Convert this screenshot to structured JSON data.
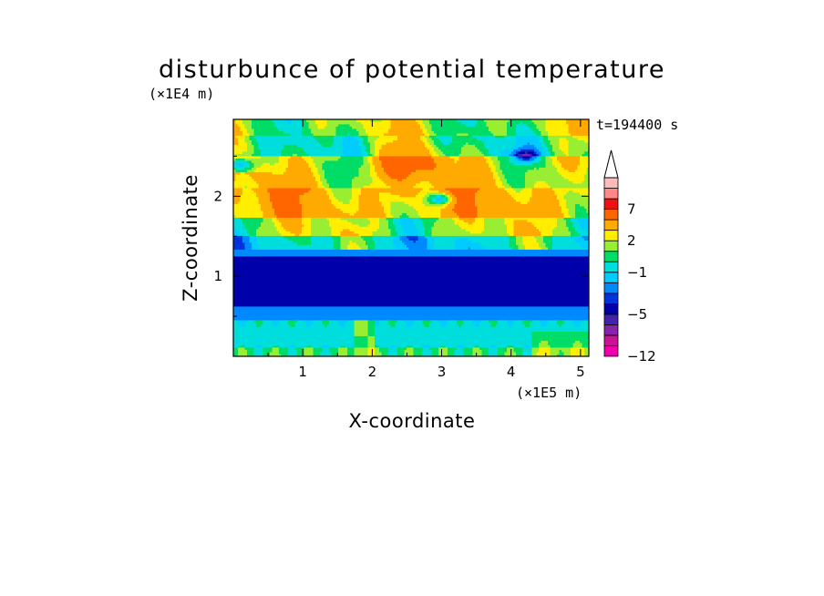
{
  "chart_data": {
    "type": "heatmap",
    "title": "disturbunce of potential temperature",
    "time_label": "t=194400 s",
    "xlabel": "X-coordinate",
    "ylabel": "Z-coordinate",
    "x_unit": "(×1E5 m)",
    "y_unit": "(×1E4 m)",
    "xlim": [
      0,
      5.12
    ],
    "ylim": [
      0,
      2.96
    ],
    "x_ticks": [
      "1",
      "2",
      "3",
      "4",
      "5"
    ],
    "x_tick_values": [
      1,
      2,
      3,
      4,
      5
    ],
    "y_ticks": [
      "1",
      "2"
    ],
    "y_tick_values": [
      1,
      2
    ],
    "colorbar": {
      "levels": [
        -12,
        -10,
        -8,
        -6,
        -5,
        -4,
        -3,
        -2,
        -1,
        0,
        1,
        2,
        3,
        5,
        7,
        9,
        11
      ],
      "labels": [
        "-12",
        "-5",
        "-1",
        "2",
        "7"
      ],
      "label_levels": [
        -12,
        -5,
        -1,
        2,
        7
      ],
      "colors": [
        "#ee00aa",
        "#cc1199",
        "#8822aa",
        "#4422aa",
        "#0000aa",
        "#0033dd",
        "#0088ff",
        "#00ccff",
        "#00dddd",
        "#00dd66",
        "#99ee33",
        "#ffee00",
        "#ffaa00",
        "#ff6600",
        "#ee1111",
        "#ff8888",
        "#ffbbbb"
      ],
      "extend_max": true
    },
    "fields": {
      "description_free": true,
      "bands": [
        {
          "z": [
            0.0,
            0.12
          ],
          "value": 0.5
        },
        {
          "z": [
            0.12,
            0.45
          ],
          "value": -0.5
        },
        {
          "z": [
            0.45,
            0.62
          ],
          "value": -2.5
        },
        {
          "z": [
            0.62,
            1.25
          ],
          "value": -4.5
        },
        {
          "z": [
            1.25,
            1.35
          ],
          "value": -2.5
        },
        {
          "z": [
            1.35,
            1.5
          ],
          "value": -0.5
        },
        {
          "z": [
            1.5,
            1.75
          ],
          "value": 1.5
        },
        {
          "z": [
            1.75,
            2.1
          ],
          "value": 3.5
        },
        {
          "z": [
            2.1,
            2.5
          ],
          "value": 2.5
        },
        {
          "z": [
            2.5,
            2.75
          ],
          "value": 0.5
        },
        {
          "z": [
            2.75,
            2.96
          ],
          "value": 1.5
        }
      ]
    }
  }
}
